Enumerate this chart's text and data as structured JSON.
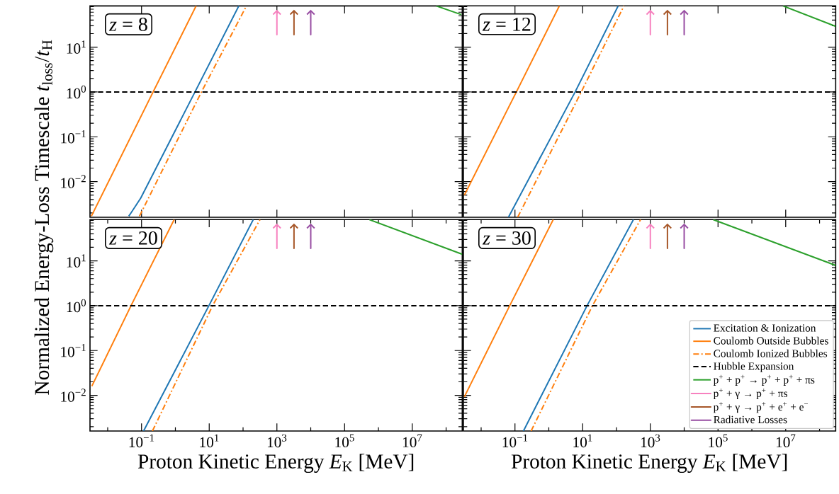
{
  "chart_data": [
    {
      "type": "line",
      "annotations": [
        "*z* = 8"
      ],
      "ylabel": "Normalized Energy-Loss Timescale *t*$_{loss}$/*t*$_{H}$",
      "xlim": [
        0.003,
        300000000
      ],
      "ylim": [
        0.0016,
        83
      ],
      "log": "xy",
      "grid": false,
      "legend": false,
      "tick_labels": "y",
      "xticks": [
        {
          "value": 0.1,
          "label": null
        },
        {
          "value": 10,
          "label": null
        },
        {
          "value": 1000,
          "label": null
        },
        {
          "value": 100000,
          "label": null
        },
        {
          "value": 10000000,
          "label": null
        }
      ],
      "yticks": [
        {
          "value": 0.01,
          "label": "10$^{−2}$"
        },
        {
          "value": 0.1,
          "label": "10$^{−1}$"
        },
        {
          "value": 1,
          "label": "10$^{0}$"
        },
        {
          "value": 10,
          "label": "10$^{1}$"
        }
      ],
      "series": [
        {
          "color": "#1f77b4",
          "line_style": "solid",
          "x": [
            0.042,
            0.051,
            0.095,
            3.8,
            75
          ],
          "values": [
            0.0017,
            0.0021,
            0.0043,
            1,
            83
          ]
        },
        {
          "color": "#ff7f0e",
          "line_style": "solid",
          "x": [
            0.0033,
            0.22,
            4.1
          ],
          "values": [
            0.0017,
            1,
            83
          ]
        },
        {
          "color": "#ff7f0e",
          "line_style": "dashdot",
          "x": [
            0.087,
            5.9,
            126
          ],
          "values": [
            0.0017,
            1,
            83
          ]
        },
        {
          "color": "#000000",
          "line_style": "dashed",
          "x": [
            0.003,
            300000000
          ],
          "values": [
            1,
            1
          ]
        },
        {
          "color": "#2ca02c",
          "line_style": "solid",
          "x": [
            51000000,
            280000000
          ],
          "values": [
            83,
            53
          ]
        },
        {
          "color": "#f781bf",
          "line_style": "solid",
          "x": [
            1000,
            1000
          ],
          "values": [
            62,
            19
          ]
        },
        {
          "color": "#a65628",
          "line_style": "solid",
          "x": [
            3200,
            3200
          ],
          "values": [
            62,
            19
          ]
        },
        {
          "color": "#984ea3",
          "line_style": "solid",
          "x": [
            10000,
            10000
          ],
          "values": [
            62,
            19
          ]
        }
      ]
    },
    {
      "type": "line",
      "annotations": [
        "*z* = 12"
      ],
      "xlim": [
        0.003,
        300000000
      ],
      "ylim": [
        0.0016,
        83
      ],
      "log": "xy",
      "grid": false,
      "legend": false,
      "tick_labels": false,
      "xticks": [
        {
          "value": 0.1,
          "label": null
        },
        {
          "value": 10,
          "label": null
        },
        {
          "value": 1000,
          "label": null
        },
        {
          "value": 100000,
          "label": null
        },
        {
          "value": 10000000,
          "label": null
        }
      ],
      "yticks": [
        {
          "value": 0.01,
          "label": null
        },
        {
          "value": 0.1,
          "label": null
        },
        {
          "value": 1,
          "label": null
        },
        {
          "value": 10,
          "label": null
        }
      ],
      "series": [
        {
          "color": "#1f77b4",
          "line_style": "solid",
          "x": [
            0.064,
            6,
            112
          ],
          "values": [
            0.0016,
            1,
            83
          ]
        },
        {
          "color": "#ff7f0e",
          "line_style": "solid",
          "x": [
            0.0032,
            0.11,
            2.05
          ],
          "values": [
            0.005,
            1,
            83
          ]
        },
        {
          "color": "#ff7f0e",
          "line_style": "dashdot",
          "x": [
            0.12,
            9.1,
            166
          ],
          "values": [
            0.0016,
            1,
            83
          ]
        },
        {
          "color": "#000000",
          "line_style": "dashed",
          "x": [
            0.003,
            300000000
          ],
          "values": [
            1,
            1
          ]
        },
        {
          "color": "#2ca02c",
          "line_style": "solid",
          "x": [
            8300000,
            300000000
          ],
          "values": [
            83,
            29
          ]
        },
        {
          "color": "#f781bf",
          "line_style": "solid",
          "x": [
            1000,
            1000
          ],
          "values": [
            62,
            19
          ]
        },
        {
          "color": "#a65628",
          "line_style": "solid",
          "x": [
            3200,
            3200
          ],
          "values": [
            62,
            19
          ]
        },
        {
          "color": "#984ea3",
          "line_style": "solid",
          "x": [
            10000,
            10000
          ],
          "values": [
            62,
            19
          ]
        }
      ]
    },
    {
      "type": "line",
      "annotations": [
        "*z* = 20"
      ],
      "xlabel": "Proton Kinetic Energy *E*$_{K}$ [MeV]",
      "xlim": [
        0.003,
        300000000
      ],
      "ylim": [
        0.0016,
        83
      ],
      "log": "xy",
      "grid": false,
      "legend": false,
      "xticks": [
        {
          "value": 0.01,
          "label": null
        },
        {
          "value": 0.1,
          "label": "10$^{−1}$"
        },
        {
          "value": 1,
          "label": null
        },
        {
          "value": 10,
          "label": "10$^{1}$"
        },
        {
          "value": 100,
          "label": null
        },
        {
          "value": 1000,
          "label": "10$^{3}$"
        },
        {
          "value": 10000,
          "label": null
        },
        {
          "value": 100000,
          "label": "10$^{5}$"
        },
        {
          "value": 1000000,
          "label": null
        },
        {
          "value": 10000000,
          "label": "10$^{7}$"
        },
        {
          "value": 100000000,
          "label": null
        }
      ],
      "yticks": [
        {
          "value": 0.01,
          "label": "10$^{−2}$"
        },
        {
          "value": 0.1,
          "label": "10$^{−1}$"
        },
        {
          "value": 1,
          "label": "10$^{0}$"
        },
        {
          "value": 10,
          "label": "10$^{1}$"
        }
      ],
      "series": [
        {
          "color": "#1f77b4",
          "line_style": "solid",
          "x": [
            0.115,
            9.8,
            200
          ],
          "values": [
            0.0016,
            1,
            83
          ]
        },
        {
          "color": "#ff7f0e",
          "line_style": "solid",
          "x": [
            0.0034,
            0.049,
            0.92
          ],
          "values": [
            0.016,
            1,
            83
          ]
        },
        {
          "color": "#ff7f0e",
          "line_style": "dashdot",
          "x": [
            0.21,
            12.6,
            316
          ],
          "values": [
            0.0016,
            1,
            83
          ]
        },
        {
          "color": "#000000",
          "line_style": "dashed",
          "x": [
            0.003,
            300000000
          ],
          "values": [
            1,
            1
          ]
        },
        {
          "color": "#2ca02c",
          "line_style": "solid",
          "x": [
            540000,
            300000000
          ],
          "values": [
            83,
            14
          ]
        },
        {
          "color": "#f781bf",
          "line_style": "solid",
          "x": [
            1000,
            1000
          ],
          "values": [
            62,
            19
          ]
        },
        {
          "color": "#a65628",
          "line_style": "solid",
          "x": [
            3200,
            3200
          ],
          "values": [
            62,
            19
          ]
        },
        {
          "color": "#984ea3",
          "line_style": "solid",
          "x": [
            10000,
            10000
          ],
          "values": [
            62,
            19
          ]
        }
      ]
    },
    {
      "type": "line",
      "annotations": [
        "*z* = 30"
      ],
      "xlabel": "Proton Kinetic Energy *E*$_{K}$ [MeV]",
      "xlim": [
        0.003,
        300000000
      ],
      "ylim": [
        0.0016,
        83
      ],
      "log": "xy",
      "grid": false,
      "legend": "bottom right",
      "tick_labels": "x",
      "xticks": [
        {
          "value": 0.01,
          "label": null
        },
        {
          "value": 0.1,
          "label": "10$^{−1}$"
        },
        {
          "value": 1,
          "label": null
        },
        {
          "value": 10,
          "label": "10$^{1}$"
        },
        {
          "value": 100,
          "label": null
        },
        {
          "value": 1000,
          "label": "10$^{3}$"
        },
        {
          "value": 10000,
          "label": null
        },
        {
          "value": 100000,
          "label": "10$^{5}$"
        },
        {
          "value": 1000000,
          "label": null
        },
        {
          "value": 10000000,
          "label": "10$^{7}$"
        },
        {
          "value": 100000000,
          "label": null
        }
      ],
      "yticks": [
        {
          "value": 0.01,
          "label": null
        },
        {
          "value": 0.1,
          "label": null
        },
        {
          "value": 1,
          "label": null
        },
        {
          "value": 10,
          "label": null
        }
      ],
      "series": [
        {
          "name": "Excitation & Ionization",
          "color": "#1f77b4",
          "line_style": "solid",
          "x": [
            0.178,
            13.5,
            316
          ],
          "values": [
            0.0016,
            1,
            83
          ]
        },
        {
          "name": "Coulomb Outside Bubbles",
          "color": "#ff7f0e",
          "line_style": "solid",
          "x": [
            0.0032,
            0.07,
            1.35
          ],
          "values": [
            0.0093,
            1,
            83
          ]
        },
        {
          "name": "Coulomb Ionized Bubbles",
          "color": "#ff7f0e",
          "line_style": "dashdot",
          "x": [
            0.3,
            19.5,
            513
          ],
          "values": [
            0.0016,
            1,
            83
          ]
        },
        {
          "name": "Hubble Expansion",
          "color": "#000000",
          "line_style": "dashed",
          "x": [
            0.003,
            300000000
          ],
          "values": [
            1,
            1
          ]
        },
        {
          "name": "p$^{+}$ + p$^{+}$ → p$^{+}$ + p$^{+}$ + πs",
          "color": "#2ca02c",
          "line_style": "solid",
          "x": [
            72000,
            300000000
          ],
          "values": [
            83,
            7.9
          ]
        },
        {
          "name": "p$^{+}$ + γ → p$^{+}$ + πs",
          "color": "#f781bf",
          "line_style": "solid",
          "x": [
            1000,
            1000
          ],
          "values": [
            62,
            19
          ]
        },
        {
          "name": "p$^{+}$ + γ → p$^{+}$ + e$^{+}$ + e$^{−}$",
          "color": "#a65628",
          "line_style": "solid",
          "x": [
            3200,
            3200
          ],
          "values": [
            62,
            19
          ]
        },
        {
          "name": "Radiative Losses",
          "color": "#984ea3",
          "line_style": "solid",
          "x": [
            10000,
            10000
          ],
          "values": [
            62,
            19
          ]
        }
      ]
    }
  ]
}
